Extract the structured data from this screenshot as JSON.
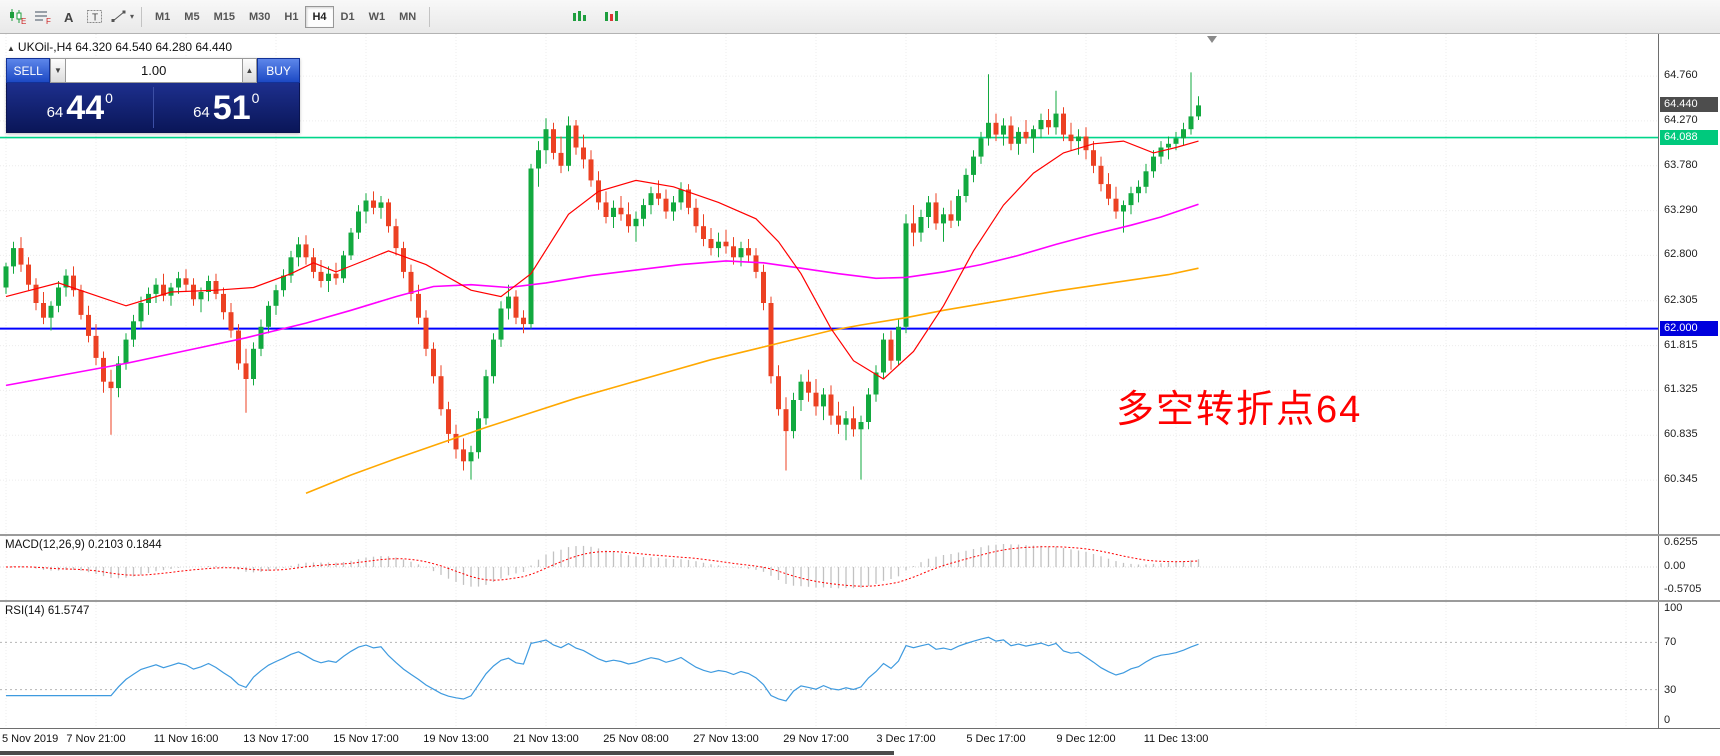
{
  "colors": {
    "up": "#12a93f",
    "down": "#ec4123",
    "ma_fast": "#ff0000",
    "ma_mid": "#ff00ff",
    "ma_slow": "#ffa800",
    "hline_green": "#00d68a",
    "hline_blue": "#0000ff",
    "rsi_line": "#3e9adf",
    "macd_hist": "#c2c2c2",
    "macd_signal": "#ff0000",
    "annotation": "#ff0000",
    "badge_current_bg": "#4d4d4d",
    "badge_green_bg": "#00c97d",
    "badge_blue_bg": "#0000dd"
  },
  "toolbar": {
    "icons_left": [
      {
        "name": "chart-type-candles-icon",
        "type": "candles",
        "glyph": "E"
      },
      {
        "name": "chart-grid-icon",
        "type": "lines",
        "glyph": "F"
      },
      {
        "name": "annotate-letter-icon",
        "type": "letter",
        "glyph": "A"
      },
      {
        "name": "text-box-tool-icon",
        "type": "boxletter",
        "glyph": "T"
      },
      {
        "name": "draw-tools-icon",
        "type": "draw",
        "glyph": "",
        "caret": "▾"
      }
    ],
    "icons_right": [
      {
        "name": "indicator-bars-green-icon",
        "type": "minigreen",
        "glyph": ""
      },
      {
        "name": "indicator-bars-mixed-icon",
        "type": "minimixed",
        "glyph": ""
      }
    ],
    "timeframes": [
      "M1",
      "M5",
      "M15",
      "M30",
      "H1",
      "H4",
      "D1",
      "W1",
      "MN"
    ],
    "active_timeframe": "H4"
  },
  "main_chart": {
    "collapse_marker": "▲",
    "header": "UKOil-,H4  64.320 64.540 64.280 64.440",
    "annotation": "多空转折点64",
    "axis_labels": [
      "64.760",
      "64.270",
      "63.780",
      "63.290",
      "62.800",
      "62.305",
      "61.815",
      "61.325",
      "60.835",
      "60.345"
    ],
    "current_price_label": "64.440",
    "green_level_label": "64.088",
    "blue_level_label": "62.000"
  },
  "trade_panel": {
    "sell_label": "SELL",
    "buy_label": "BUY",
    "volume": "1.00",
    "dd_glyph": "▼",
    "up_glyph": "▲",
    "bid": {
      "prefix": "64",
      "main": "44",
      "pip": "0"
    },
    "ask": {
      "prefix": "64",
      "main": "51",
      "pip": "0"
    }
  },
  "macd_panel": {
    "label": "MACD(12,26,9) 0.2103 0.1844",
    "axis_labels": [
      "0.6255",
      "0.00",
      "-0.5705"
    ]
  },
  "rsi_panel": {
    "label": "RSI(14) 61.5747",
    "axis_labels": [
      "100",
      "70",
      "30",
      "0"
    ],
    "levels": [
      70,
      30
    ]
  },
  "time_axis": [
    "5 Nov 2019",
    "7 Nov 21:00",
    "11 Nov 16:00",
    "13 Nov 17:00",
    "15 Nov 17:00",
    "19 Nov 13:00",
    "21 Nov 13:00",
    "25 Nov 08:00",
    "27 Nov 13:00",
    "29 Nov 17:00",
    "3 Dec 17:00",
    "5 Dec 17:00",
    "9 Dec 12:00",
    "11 Dec 13:00"
  ],
  "chart_data": {
    "type": "candlestick",
    "symbol": "UKOil-",
    "timeframe": "H4",
    "bars_per_gridline": 12,
    "y_range": [
      60.0,
      65.22
    ],
    "ohlc": [
      [
        62.45,
        62.72,
        62.38,
        62.68
      ],
      [
        62.68,
        62.95,
        62.6,
        62.88
      ],
      [
        62.88,
        63.0,
        62.62,
        62.7
      ],
      [
        62.7,
        62.78,
        62.42,
        62.48
      ],
      [
        62.48,
        62.55,
        62.2,
        62.28
      ],
      [
        62.28,
        62.4,
        62.05,
        62.12
      ],
      [
        62.12,
        62.3,
        61.98,
        62.25
      ],
      [
        62.25,
        62.52,
        62.18,
        62.45
      ],
      [
        62.45,
        62.65,
        62.35,
        62.58
      ],
      [
        62.58,
        62.68,
        62.35,
        62.42
      ],
      [
        62.42,
        62.48,
        62.1,
        62.15
      ],
      [
        62.15,
        62.25,
        61.85,
        61.92
      ],
      [
        61.92,
        62.05,
        61.6,
        61.68
      ],
      [
        61.68,
        61.75,
        61.3,
        61.42
      ],
      [
        61.42,
        61.55,
        60.84,
        61.35
      ],
      [
        61.35,
        61.7,
        61.25,
        61.62
      ],
      [
        61.62,
        61.95,
        61.55,
        61.88
      ],
      [
        61.88,
        62.15,
        61.8,
        62.08
      ],
      [
        62.08,
        62.35,
        62.0,
        62.28
      ],
      [
        62.28,
        62.45,
        62.15,
        62.38
      ],
      [
        62.38,
        62.55,
        62.28,
        62.48
      ],
      [
        62.48,
        62.6,
        62.3,
        62.36
      ],
      [
        62.36,
        62.5,
        62.25,
        62.45
      ],
      [
        62.45,
        62.62,
        62.38,
        62.55
      ],
      [
        62.55,
        62.65,
        62.4,
        62.48
      ],
      [
        62.48,
        62.55,
        62.25,
        62.32
      ],
      [
        62.32,
        62.45,
        62.18,
        62.4
      ],
      [
        62.4,
        62.58,
        62.3,
        62.52
      ],
      [
        62.52,
        62.6,
        62.32,
        62.38
      ],
      [
        62.38,
        62.45,
        62.1,
        62.18
      ],
      [
        62.18,
        62.28,
        61.9,
        61.98
      ],
      [
        61.98,
        62.05,
        61.55,
        61.62
      ],
      [
        61.62,
        61.78,
        61.08,
        61.45
      ],
      [
        61.45,
        61.85,
        61.38,
        61.78
      ],
      [
        61.78,
        62.1,
        61.7,
        62.02
      ],
      [
        62.02,
        62.3,
        61.95,
        62.25
      ],
      [
        62.25,
        62.48,
        62.15,
        62.42
      ],
      [
        62.42,
        62.65,
        62.35,
        62.58
      ],
      [
        62.58,
        62.85,
        62.5,
        62.78
      ],
      [
        62.78,
        63.0,
        62.68,
        62.92
      ],
      [
        62.92,
        63.02,
        62.7,
        62.78
      ],
      [
        62.78,
        62.88,
        62.55,
        62.62
      ],
      [
        62.62,
        62.75,
        62.45,
        62.52
      ],
      [
        62.52,
        62.68,
        62.4,
        62.6
      ],
      [
        62.6,
        62.72,
        62.48,
        62.55
      ],
      [
        62.55,
        62.85,
        62.5,
        62.8
      ],
      [
        62.8,
        63.1,
        62.75,
        63.05
      ],
      [
        63.05,
        63.35,
        62.98,
        63.28
      ],
      [
        63.28,
        63.48,
        63.15,
        63.4
      ],
      [
        63.4,
        63.5,
        63.25,
        63.32
      ],
      [
        63.32,
        63.45,
        63.2,
        63.38
      ],
      [
        63.38,
        63.42,
        63.05,
        63.12
      ],
      [
        63.12,
        63.2,
        62.8,
        62.88
      ],
      [
        62.88,
        62.95,
        62.55,
        62.62
      ],
      [
        62.62,
        62.7,
        62.3,
        62.38
      ],
      [
        62.38,
        62.48,
        62.05,
        62.12
      ],
      [
        62.12,
        62.2,
        61.7,
        61.78
      ],
      [
        61.78,
        61.85,
        61.4,
        61.48
      ],
      [
        61.48,
        61.6,
        61.05,
        61.12
      ],
      [
        61.12,
        61.2,
        60.75,
        60.85
      ],
      [
        60.85,
        60.95,
        60.58,
        60.68
      ],
      [
        60.68,
        60.8,
        60.45,
        60.55
      ],
      [
        60.55,
        60.72,
        60.35,
        60.65
      ],
      [
        60.65,
        61.1,
        60.58,
        61.02
      ],
      [
        61.02,
        61.55,
        60.95,
        61.48
      ],
      [
        61.48,
        61.95,
        61.4,
        61.88
      ],
      [
        61.88,
        62.3,
        61.8,
        62.22
      ],
      [
        62.22,
        62.48,
        62.1,
        62.35
      ],
      [
        62.35,
        62.42,
        62.05,
        62.12
      ],
      [
        62.12,
        62.2,
        61.95,
        62.05
      ],
      [
        62.05,
        63.8,
        62.0,
        63.75
      ],
      [
        63.75,
        64.05,
        63.55,
        63.95
      ],
      [
        63.95,
        64.3,
        63.8,
        64.18
      ],
      [
        64.18,
        64.25,
        63.85,
        63.92
      ],
      [
        63.92,
        64.1,
        63.7,
        63.78
      ],
      [
        63.78,
        64.32,
        63.72,
        64.22
      ],
      [
        64.22,
        64.28,
        63.9,
        63.98
      ],
      [
        63.98,
        64.12,
        63.75,
        63.85
      ],
      [
        63.85,
        63.95,
        63.55,
        63.62
      ],
      [
        63.62,
        63.72,
        63.3,
        63.38
      ],
      [
        63.38,
        63.5,
        63.15,
        63.22
      ],
      [
        63.22,
        63.4,
        63.1,
        63.32
      ],
      [
        63.32,
        63.45,
        63.18,
        63.25
      ],
      [
        63.25,
        63.38,
        63.05,
        63.12
      ],
      [
        63.12,
        63.28,
        62.95,
        63.2
      ],
      [
        63.2,
        63.42,
        63.12,
        63.35
      ],
      [
        63.35,
        63.55,
        63.25,
        63.48
      ],
      [
        63.48,
        63.62,
        63.35,
        63.42
      ],
      [
        63.42,
        63.52,
        63.2,
        63.28
      ],
      [
        63.28,
        63.45,
        63.18,
        63.38
      ],
      [
        63.38,
        63.6,
        63.3,
        63.52
      ],
      [
        63.52,
        63.58,
        63.25,
        63.32
      ],
      [
        63.32,
        63.42,
        63.05,
        63.12
      ],
      [
        63.12,
        63.25,
        62.9,
        62.98
      ],
      [
        62.98,
        63.1,
        62.8,
        62.88
      ],
      [
        62.88,
        63.05,
        62.78,
        62.95
      ],
      [
        62.95,
        63.08,
        62.82,
        62.9
      ],
      [
        62.9,
        63.0,
        62.7,
        62.78
      ],
      [
        62.78,
        62.95,
        62.68,
        62.88
      ],
      [
        62.88,
        62.98,
        62.72,
        62.8
      ],
      [
        62.8,
        62.88,
        62.55,
        62.62
      ],
      [
        62.62,
        62.7,
        62.2,
        62.28
      ],
      [
        62.28,
        62.35,
        61.4,
        61.48
      ],
      [
        61.48,
        61.6,
        61.05,
        61.12
      ],
      [
        61.12,
        61.25,
        60.45,
        60.88
      ],
      [
        60.88,
        61.3,
        60.8,
        61.22
      ],
      [
        61.22,
        61.5,
        61.1,
        61.42
      ],
      [
        61.42,
        61.55,
        61.2,
        61.3
      ],
      [
        61.3,
        61.45,
        61.05,
        61.15
      ],
      [
        61.15,
        61.35,
        61.0,
        61.28
      ],
      [
        61.28,
        61.38,
        60.95,
        61.05
      ],
      [
        61.05,
        61.2,
        60.85,
        60.95
      ],
      [
        60.95,
        61.1,
        60.78,
        61.02
      ],
      [
        61.02,
        61.15,
        60.82,
        60.9
      ],
      [
        60.9,
        61.05,
        60.35,
        60.98
      ],
      [
        60.98,
        61.35,
        60.9,
        61.28
      ],
      [
        61.28,
        61.6,
        61.2,
        61.52
      ],
      [
        61.52,
        61.95,
        61.45,
        61.88
      ],
      [
        61.88,
        61.98,
        61.55,
        61.65
      ],
      [
        61.65,
        62.1,
        61.6,
        62.02
      ],
      [
        62.02,
        63.25,
        61.95,
        63.15
      ],
      [
        63.15,
        63.35,
        62.9,
        63.05
      ],
      [
        63.05,
        63.3,
        62.95,
        63.22
      ],
      [
        63.22,
        63.45,
        63.1,
        63.38
      ],
      [
        63.38,
        63.48,
        63.08,
        63.15
      ],
      [
        63.15,
        63.32,
        62.95,
        63.25
      ],
      [
        63.25,
        63.4,
        63.1,
        63.18
      ],
      [
        63.18,
        63.52,
        63.12,
        63.45
      ],
      [
        63.45,
        63.75,
        63.38,
        63.68
      ],
      [
        63.68,
        63.95,
        63.6,
        63.88
      ],
      [
        63.88,
        64.15,
        63.8,
        64.08
      ],
      [
        64.08,
        64.78,
        64.0,
        64.25
      ],
      [
        64.25,
        64.35,
        64.05,
        64.12
      ],
      [
        64.12,
        64.3,
        64.0,
        64.22
      ],
      [
        64.22,
        64.32,
        63.95,
        64.02
      ],
      [
        64.02,
        64.2,
        63.9,
        64.15
      ],
      [
        64.15,
        64.28,
        64.02,
        64.08
      ],
      [
        64.08,
        64.22,
        63.92,
        64.18
      ],
      [
        64.18,
        64.35,
        64.08,
        64.28
      ],
      [
        64.28,
        64.4,
        64.12,
        64.2
      ],
      [
        64.2,
        64.6,
        64.12,
        64.35
      ],
      [
        64.35,
        64.42,
        64.05,
        64.12
      ],
      [
        64.12,
        64.25,
        63.95,
        64.05
      ],
      [
        64.05,
        64.18,
        63.9,
        64.1
      ],
      [
        64.1,
        64.2,
        63.85,
        63.95
      ],
      [
        63.95,
        64.05,
        63.7,
        63.78
      ],
      [
        63.78,
        63.88,
        63.5,
        63.58
      ],
      [
        63.58,
        63.7,
        63.35,
        63.42
      ],
      [
        63.42,
        63.55,
        63.2,
        63.28
      ],
      [
        63.28,
        63.4,
        63.05,
        63.35
      ],
      [
        63.35,
        63.55,
        63.25,
        63.48
      ],
      [
        63.48,
        63.62,
        63.38,
        63.55
      ],
      [
        63.55,
        63.8,
        63.48,
        63.72
      ],
      [
        63.72,
        63.95,
        63.65,
        63.88
      ],
      [
        63.88,
        64.05,
        63.8,
        63.98
      ],
      [
        63.98,
        64.1,
        63.85,
        64.02
      ],
      [
        64.02,
        64.15,
        63.95,
        64.08
      ],
      [
        64.08,
        64.25,
        64.0,
        64.18
      ],
      [
        64.18,
        64.8,
        64.12,
        64.32
      ],
      [
        64.32,
        64.54,
        64.28,
        64.44
      ]
    ],
    "ma_fast_points": [
      [
        0,
        62.35
      ],
      [
        7,
        62.5
      ],
      [
        16,
        62.25
      ],
      [
        22,
        62.4
      ],
      [
        28,
        62.42
      ],
      [
        33,
        62.45
      ],
      [
        38,
        62.6
      ],
      [
        41,
        62.72
      ],
      [
        44,
        62.62
      ],
      [
        48,
        62.75
      ],
      [
        51,
        62.85
      ],
      [
        56,
        62.7
      ],
      [
        62,
        62.42
      ],
      [
        66,
        62.35
      ],
      [
        70,
        62.6
      ],
      [
        75,
        63.25
      ],
      [
        79,
        63.5
      ],
      [
        84,
        63.62
      ],
      [
        89,
        63.55
      ],
      [
        95,
        63.38
      ],
      [
        100,
        63.2
      ],
      [
        103,
        62.95
      ],
      [
        106,
        62.6
      ],
      [
        110,
        62.0
      ],
      [
        113,
        61.65
      ],
      [
        117,
        61.45
      ],
      [
        121,
        61.75
      ],
      [
        125,
        62.25
      ],
      [
        129,
        62.85
      ],
      [
        133,
        63.35
      ],
      [
        137,
        63.7
      ],
      [
        141,
        63.92
      ],
      [
        145,
        64.02
      ],
      [
        149,
        64.05
      ],
      [
        153,
        63.92
      ],
      [
        156,
        63.98
      ],
      [
        159,
        64.05
      ]
    ],
    "ma_mid_points": [
      [
        0,
        61.38
      ],
      [
        8,
        61.5
      ],
      [
        16,
        61.62
      ],
      [
        24,
        61.76
      ],
      [
        32,
        61.9
      ],
      [
        40,
        62.06
      ],
      [
        46,
        62.2
      ],
      [
        52,
        62.35
      ],
      [
        57,
        62.46
      ],
      [
        62,
        62.48
      ],
      [
        67,
        62.45
      ],
      [
        72,
        62.5
      ],
      [
        78,
        62.58
      ],
      [
        84,
        62.64
      ],
      [
        90,
        62.7
      ],
      [
        96,
        62.74
      ],
      [
        101,
        62.72
      ],
      [
        106,
        62.66
      ],
      [
        111,
        62.6
      ],
      [
        116,
        62.55
      ],
      [
        120,
        62.56
      ],
      [
        125,
        62.62
      ],
      [
        130,
        62.7
      ],
      [
        135,
        62.8
      ],
      [
        140,
        62.92
      ],
      [
        145,
        63.03
      ],
      [
        150,
        63.13
      ],
      [
        154,
        63.22
      ],
      [
        159,
        63.36
      ]
    ],
    "ma_slow_points": [
      [
        40,
        60.2
      ],
      [
        46,
        60.4
      ],
      [
        52,
        60.58
      ],
      [
        58,
        60.75
      ],
      [
        64,
        60.92
      ],
      [
        70,
        61.08
      ],
      [
        76,
        61.24
      ],
      [
        82,
        61.38
      ],
      [
        88,
        61.52
      ],
      [
        94,
        61.66
      ],
      [
        100,
        61.78
      ],
      [
        105,
        61.88
      ],
      [
        110,
        61.98
      ],
      [
        114,
        62.04
      ],
      [
        120,
        62.12
      ],
      [
        125,
        62.2
      ],
      [
        130,
        62.27
      ],
      [
        135,
        62.34
      ],
      [
        140,
        62.41
      ],
      [
        145,
        62.47
      ],
      [
        150,
        62.53
      ],
      [
        155,
        62.59
      ],
      [
        159,
        62.66
      ]
    ]
  }
}
